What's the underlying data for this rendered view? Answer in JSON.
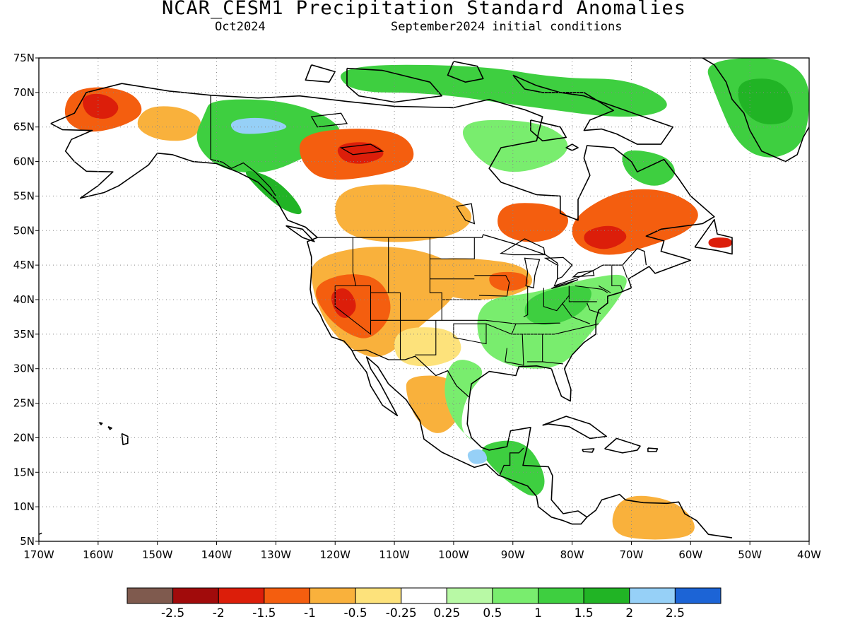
{
  "title": "NCAR_CESM1 Precipitation Standard Anomalies",
  "valid_month": "Oct2024",
  "initial_conditions": "September2024 initial conditions",
  "map": {
    "lon_range": [
      -170,
      -40
    ],
    "lat_range": [
      5,
      75
    ],
    "lon_ticks": [
      {
        "value": -170,
        "label": "170W"
      },
      {
        "value": -160,
        "label": "160W"
      },
      {
        "value": -150,
        "label": "150W"
      },
      {
        "value": -140,
        "label": "140W"
      },
      {
        "value": -130,
        "label": "130W"
      },
      {
        "value": -120,
        "label": "120W"
      },
      {
        "value": -110,
        "label": "110W"
      },
      {
        "value": -100,
        "label": "100W"
      },
      {
        "value": -90,
        "label": "90W"
      },
      {
        "value": -80,
        "label": "80W"
      },
      {
        "value": -70,
        "label": "70W"
      },
      {
        "value": -60,
        "label": "60W"
      },
      {
        "value": -50,
        "label": "50W"
      },
      {
        "value": -40,
        "label": "40W"
      }
    ],
    "lat_ticks": [
      {
        "value": 75,
        "label": "75N"
      },
      {
        "value": 70,
        "label": "70N"
      },
      {
        "value": 65,
        "label": "65N"
      },
      {
        "value": 60,
        "label": "60N"
      },
      {
        "value": 55,
        "label": "55N"
      },
      {
        "value": 50,
        "label": "50N"
      },
      {
        "value": 45,
        "label": "45N"
      },
      {
        "value": 40,
        "label": "40N"
      },
      {
        "value": 35,
        "label": "35N"
      },
      {
        "value": 30,
        "label": "30N"
      },
      {
        "value": 25,
        "label": "25N"
      },
      {
        "value": 20,
        "label": "20N"
      },
      {
        "value": 15,
        "label": "15N"
      },
      {
        "value": 10,
        "label": "10N"
      },
      {
        "value": 5,
        "label": "5N"
      }
    ],
    "grid": "dotted",
    "background_color": "#ffffff",
    "coast_color": "#000000"
  },
  "colorbar": {
    "colors": [
      "#7f5a4e",
      "#a10b0b",
      "#dc1e0a",
      "#f45e0f",
      "#f9b13c",
      "#fde27b",
      "#ffffff",
      "#b8f9a5",
      "#79ed6e",
      "#3ecf40",
      "#21b425",
      "#96d0f7",
      "#1c64d6"
    ],
    "labels": [
      "-2.5",
      "-2",
      "-1.5",
      "-1",
      "-0.5",
      "-0.25",
      "0.25",
      "0.5",
      "1",
      "1.5",
      "2",
      "2.5"
    ]
  },
  "anomaly_regions": [
    {
      "name": "Alaska west",
      "level": 3,
      "pts": [
        [
          -165,
          70
        ],
        [
          -160,
          71
        ],
        [
          -154,
          70
        ],
        [
          -152,
          67
        ],
        [
          -156,
          65
        ],
        [
          -162,
          64
        ],
        [
          -166,
          66
        ]
      ]
    },
    {
      "name": "Alaska west core",
      "level": 2,
      "pts": [
        [
          -163,
          69.5
        ],
        [
          -159,
          70
        ],
        [
          -156,
          68
        ],
        [
          -158,
          66
        ],
        [
          -162,
          66.5
        ]
      ]
    },
    {
      "name": "Alaska interior",
      "level": 4,
      "pts": [
        [
          -152,
          68
        ],
        [
          -146,
          68
        ],
        [
          -142,
          66
        ],
        [
          -144,
          63
        ],
        [
          -150,
          63
        ],
        [
          -154,
          65
        ]
      ]
    },
    {
      "name": "Yukon wet",
      "level": 9,
      "pts": [
        [
          -141,
          69
        ],
        [
          -130,
          69
        ],
        [
          -122,
          67
        ],
        [
          -118,
          64
        ],
        [
          -124,
          61
        ],
        [
          -132,
          58
        ],
        [
          -140,
          59
        ],
        [
          -144,
          63
        ],
        [
          -142,
          67
        ]
      ]
    },
    {
      "name": "Yukon wet core",
      "level": 11,
      "pts": [
        [
          -138,
          66
        ],
        [
          -132,
          66.5
        ],
        [
          -127,
          65
        ],
        [
          -132,
          64
        ],
        [
          -137,
          64
        ]
      ]
    },
    {
      "name": "BC coast wet",
      "level": 10,
      "pts": [
        [
          -136,
          59
        ],
        [
          -131,
          58
        ],
        [
          -127,
          55
        ],
        [
          -125,
          52
        ],
        [
          -129,
          53
        ],
        [
          -133,
          56
        ]
      ]
    },
    {
      "name": "Great Slave dry",
      "level": 3,
      "pts": [
        [
          -126,
          64
        ],
        [
          -116,
          65
        ],
        [
          -108,
          64
        ],
        [
          -106,
          60
        ],
        [
          -112,
          58
        ],
        [
          -122,
          57
        ],
        [
          -126,
          60
        ]
      ]
    },
    {
      "name": "Great Slave core",
      "level": 2,
      "pts": [
        [
          -120,
          62.5
        ],
        [
          -114,
          63
        ],
        [
          -111,
          61
        ],
        [
          -115,
          59.5
        ],
        [
          -119,
          60
        ]
      ]
    },
    {
      "name": "Prairies dry",
      "level": 4,
      "pts": [
        [
          -120,
          56
        ],
        [
          -110,
          57
        ],
        [
          -100,
          55
        ],
        [
          -96,
          52
        ],
        [
          -100,
          49
        ],
        [
          -112,
          48
        ],
        [
          -120,
          50
        ]
      ]
    },
    {
      "name": "Ontario dry",
      "level": 3,
      "pts": [
        [
          -92,
          54
        ],
        [
          -84,
          54
        ],
        [
          -80,
          52
        ],
        [
          -82,
          49
        ],
        [
          -88,
          48
        ],
        [
          -93,
          50
        ]
      ]
    },
    {
      "name": "Quebec dry",
      "level": 3,
      "pts": [
        [
          -80,
          52
        ],
        [
          -72,
          56
        ],
        [
          -64,
          56
        ],
        [
          -58,
          53
        ],
        [
          -60,
          50
        ],
        [
          -66,
          48
        ],
        [
          -74,
          46
        ],
        [
          -80,
          48
        ]
      ]
    },
    {
      "name": "Quebec core",
      "level": 2,
      "pts": [
        [
          -78,
          50
        ],
        [
          -73,
          51
        ],
        [
          -70,
          49
        ],
        [
          -74,
          47
        ],
        [
          -78,
          48
        ]
      ]
    },
    {
      "name": "Newfoundland",
      "level": 2,
      "pts": [
        [
          -57,
          49
        ],
        [
          -53,
          49
        ],
        [
          -53,
          47.5
        ],
        [
          -57,
          47.5
        ]
      ]
    },
    {
      "name": "Hudson Bay wet",
      "level": 8,
      "pts": [
        [
          -100,
          66
        ],
        [
          -86,
          66
        ],
        [
          -80,
          63
        ],
        [
          -82,
          60
        ],
        [
          -90,
          58
        ],
        [
          -96,
          60
        ]
      ]
    },
    {
      "name": "Arctic islands wet",
      "level": 9,
      "pts": [
        [
          -120,
          74
        ],
        [
          -96,
          74
        ],
        [
          -82,
          72
        ],
        [
          -70,
          72
        ],
        [
          -62,
          68
        ],
        [
          -70,
          66
        ],
        [
          -88,
          68
        ],
        [
          -104,
          70
        ],
        [
          -118,
          70
        ]
      ]
    },
    {
      "name": "Labrador wet",
      "level": 9,
      "pts": [
        [
          -72,
          62
        ],
        [
          -64,
          61
        ],
        [
          -62,
          58
        ],
        [
          -66,
          56
        ],
        [
          -71,
          58
        ]
      ]
    },
    {
      "name": "Greenland wet",
      "level": 9,
      "pts": [
        [
          -58,
          75
        ],
        [
          -40,
          75
        ],
        [
          -40,
          63
        ],
        [
          -46,
          60
        ],
        [
          -52,
          62
        ],
        [
          -56,
          70
        ]
      ]
    },
    {
      "name": "Greenland core",
      "level": 10,
      "pts": [
        [
          -52,
          72
        ],
        [
          -44,
          72
        ],
        [
          -42,
          66
        ],
        [
          -48,
          65
        ],
        [
          -52,
          68
        ]
      ]
    },
    {
      "name": "West US dry",
      "level": 4,
      "pts": [
        [
          -124,
          46
        ],
        [
          -114,
          48
        ],
        [
          -104,
          47
        ],
        [
          -98,
          44
        ],
        [
          -100,
          40
        ],
        [
          -106,
          36
        ],
        [
          -112,
          31
        ],
        [
          -118,
          33
        ],
        [
          -122,
          37
        ],
        [
          -124,
          42
        ]
      ]
    },
    {
      "name": "Great Basin dry",
      "level": 3,
      "pts": [
        [
          -124,
          42
        ],
        [
          -118,
          44
        ],
        [
          -112,
          43
        ],
        [
          -110,
          38
        ],
        [
          -114,
          34
        ],
        [
          -118,
          35
        ],
        [
          -122,
          38
        ]
      ]
    },
    {
      "name": "Nevada core",
      "level": 2,
      "pts": [
        [
          -121,
          41
        ],
        [
          -118,
          42
        ],
        [
          -116,
          39
        ],
        [
          -118,
          37
        ],
        [
          -120,
          38
        ]
      ]
    },
    {
      "name": "Central Plains dry",
      "level": 4,
      "pts": [
        [
          -104,
          46
        ],
        [
          -96,
          46
        ],
        [
          -88,
          45
        ],
        [
          -86,
          42
        ],
        [
          -92,
          40
        ],
        [
          -100,
          40
        ],
        [
          -104,
          42
        ]
      ]
    },
    {
      "name": "Iowa core",
      "level": 3,
      "pts": [
        [
          -94,
          44
        ],
        [
          -88,
          44
        ],
        [
          -87,
          42
        ],
        [
          -91,
          41
        ],
        [
          -94,
          42
        ]
      ]
    },
    {
      "name": "Southwest patch",
      "level": 5,
      "pts": [
        [
          -110,
          36
        ],
        [
          -100,
          36
        ],
        [
          -98,
          32
        ],
        [
          -104,
          30
        ],
        [
          -110,
          31
        ]
      ]
    },
    {
      "name": "Mexico dry",
      "level": 4,
      "pts": [
        [
          -108,
          29
        ],
        [
          -100,
          29
        ],
        [
          -98,
          24
        ],
        [
          -102,
          20
        ],
        [
          -106,
          22
        ],
        [
          -108,
          26
        ]
      ]
    },
    {
      "name": "East US wet",
      "level": 8,
      "pts": [
        [
          -96,
          40
        ],
        [
          -86,
          41
        ],
        [
          -78,
          43
        ],
        [
          -70,
          44
        ],
        [
          -72,
          40
        ],
        [
          -78,
          34
        ],
        [
          -82,
          30
        ],
        [
          -90,
          30
        ],
        [
          -96,
          33
        ]
      ]
    },
    {
      "name": "Ohio valley wet",
      "level": 9,
      "pts": [
        [
          -88,
          40
        ],
        [
          -82,
          42
        ],
        [
          -76,
          42
        ],
        [
          -78,
          38
        ],
        [
          -84,
          36
        ],
        [
          -88,
          37
        ]
      ]
    },
    {
      "name": "Gulf coast wet",
      "level": 8,
      "pts": [
        [
          -100,
          32
        ],
        [
          -94,
          30
        ],
        [
          -98,
          26
        ],
        [
          -99,
          21
        ],
        [
          -96,
          19
        ],
        [
          -100,
          22
        ],
        [
          -102,
          27
        ]
      ]
    },
    {
      "name": "Central America wet",
      "level": 9,
      "pts": [
        [
          -96,
          19
        ],
        [
          -88,
          20
        ],
        [
          -84,
          14
        ],
        [
          -86,
          11
        ],
        [
          -90,
          13
        ],
        [
          -94,
          16
        ]
      ]
    },
    {
      "name": "Oaxaca wet",
      "level": 11,
      "pts": [
        [
          -98,
          18
        ],
        [
          -95,
          18.5
        ],
        [
          -94,
          16.5
        ],
        [
          -97,
          16
        ]
      ]
    },
    {
      "name": "Venezuela dry",
      "level": 4,
      "pts": [
        [
          -72,
          12
        ],
        [
          -62,
          11
        ],
        [
          -58,
          6
        ],
        [
          -66,
          5
        ],
        [
          -74,
          6
        ]
      ]
    }
  ]
}
